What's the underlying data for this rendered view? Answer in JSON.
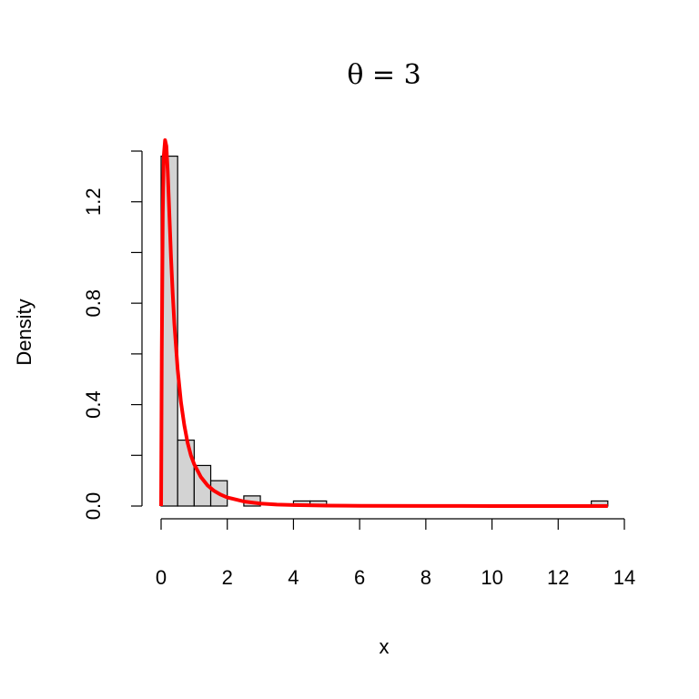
{
  "chart_data": {
    "type": "histogram",
    "title": "θ = 3",
    "xlabel": "x",
    "ylabel": "Density",
    "xlim": [
      0,
      14
    ],
    "ylim": [
      0,
      1.4
    ],
    "x_ticks": [
      0,
      2,
      4,
      6,
      8,
      10,
      12,
      14
    ],
    "x_tick_labels": [
      "0",
      "2",
      "4",
      "6",
      "8",
      "10",
      "12",
      "14"
    ],
    "y_ticks": [
      0.0,
      0.2,
      0.4,
      0.6,
      0.8,
      1.0,
      1.2,
      1.4
    ],
    "y_tick_labels": [
      "0.0",
      "",
      "0.4",
      "",
      "0.8",
      "",
      "1.2",
      ""
    ],
    "bars": [
      {
        "x0": 0.0,
        "x1": 0.5,
        "density": 1.38
      },
      {
        "x0": 0.5,
        "x1": 1.0,
        "density": 0.26
      },
      {
        "x0": 1.0,
        "x1": 1.5,
        "density": 0.16
      },
      {
        "x0": 1.5,
        "x1": 2.0,
        "density": 0.1
      },
      {
        "x0": 2.0,
        "x1": 2.5,
        "density": 0.0
      },
      {
        "x0": 2.5,
        "x1": 3.0,
        "density": 0.04
      },
      {
        "x0": 3.0,
        "x1": 3.5,
        "density": 0.0
      },
      {
        "x0": 3.5,
        "x1": 4.0,
        "density": 0.0
      },
      {
        "x0": 4.0,
        "x1": 4.5,
        "density": 0.02
      },
      {
        "x0": 4.5,
        "x1": 5.0,
        "density": 0.02
      },
      {
        "x0": 13.0,
        "x1": 13.5,
        "density": 0.02
      }
    ],
    "curve": {
      "description": "fitted density, theta = 3",
      "color": "#ff0000",
      "points": [
        [
          0.0,
          0.0
        ],
        [
          0.02,
          0.6
        ],
        [
          0.05,
          1.15
        ],
        [
          0.08,
          1.38
        ],
        [
          0.12,
          1.45
        ],
        [
          0.16,
          1.42
        ],
        [
          0.2,
          1.32
        ],
        [
          0.25,
          1.15
        ],
        [
          0.3,
          0.98
        ],
        [
          0.35,
          0.84
        ],
        [
          0.4,
          0.72
        ],
        [
          0.5,
          0.54
        ],
        [
          0.6,
          0.41
        ],
        [
          0.7,
          0.32
        ],
        [
          0.8,
          0.25
        ],
        [
          0.9,
          0.2
        ],
        [
          1.0,
          0.165
        ],
        [
          1.2,
          0.115
        ],
        [
          1.4,
          0.082
        ],
        [
          1.6,
          0.06
        ],
        [
          1.8,
          0.045
        ],
        [
          2.0,
          0.034
        ],
        [
          2.5,
          0.018
        ],
        [
          3.0,
          0.01
        ],
        [
          3.5,
          0.006
        ],
        [
          4.0,
          0.004
        ],
        [
          5.0,
          0.002
        ],
        [
          6.0,
          0.001
        ],
        [
          8.0,
          0.0005
        ],
        [
          10.0,
          0.0002
        ],
        [
          12.0,
          0.0001
        ],
        [
          13.5,
          0.0
        ]
      ]
    },
    "bar_fill": "#d3d3d3",
    "bar_stroke": "#000000"
  }
}
